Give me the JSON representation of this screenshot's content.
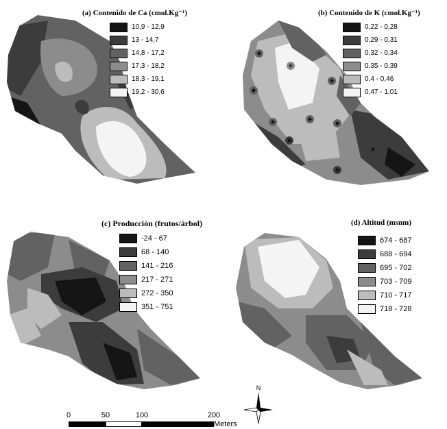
{
  "panels": {
    "a": {
      "title": "(a) Contenido de Ca (cmol.Kg⁻¹)",
      "legend": [
        {
          "label": "10,9 - 12,9",
          "color": "#151515"
        },
        {
          "label": "13 - 14,7",
          "color": "#3c3c3c"
        },
        {
          "label": "14,8 - 17,2",
          "color": "#626262"
        },
        {
          "label": "17,3 - 18,2",
          "color": "#8c8c8c"
        },
        {
          "label": "18,3 - 19,1",
          "color": "#bcbcbc"
        },
        {
          "label": "19,2 - 30,6",
          "color": "#f4f4f4"
        }
      ]
    },
    "b": {
      "title": "(b) Contenido de K (cmol.Kg⁻¹)",
      "legend": [
        {
          "label": "0,22 - 0,28",
          "color": "#151515"
        },
        {
          "label": "0,29 - 0,31",
          "color": "#3c3c3c"
        },
        {
          "label": "0,32 - 0,34",
          "color": "#626262"
        },
        {
          "label": "0,35 - 0,39",
          "color": "#8c8c8c"
        },
        {
          "label": "0,4 - 0,46",
          "color": "#bcbcbc"
        },
        {
          "label": "0,47 - 1,01",
          "color": "#f4f4f4"
        }
      ]
    },
    "c": {
      "title": "(c) Producción (frutos/árbol)",
      "legend": [
        {
          "label": "-24 - 67",
          "color": "#151515"
        },
        {
          "label": "68 - 140",
          "color": "#3c3c3c"
        },
        {
          "label": "141 - 216",
          "color": "#626262"
        },
        {
          "label": "217 - 271",
          "color": "#8c8c8c"
        },
        {
          "label": "272 - 350",
          "color": "#bcbcbc"
        },
        {
          "label": "351 - 751",
          "color": "#f4f4f4"
        }
      ]
    },
    "d": {
      "title": "(d) Altitud (msnm)",
      "legend": [
        {
          "label": "674 - 687",
          "color": "#151515"
        },
        {
          "label": "688 - 694",
          "color": "#3c3c3c"
        },
        {
          "label": "695 - 702",
          "color": "#626262"
        },
        {
          "label": "703 - 709",
          "color": "#8c8c8c"
        },
        {
          "label": "710 - 717",
          "color": "#bcbcbc"
        },
        {
          "label": "718 - 728",
          "color": "#f4f4f4"
        }
      ]
    }
  },
  "scalebar": {
    "ticks": [
      "0",
      "50",
      "100",
      "200"
    ],
    "units": "Meters"
  },
  "north_arrow": {
    "label": "N",
    "icon": "compass-rose-icon"
  }
}
